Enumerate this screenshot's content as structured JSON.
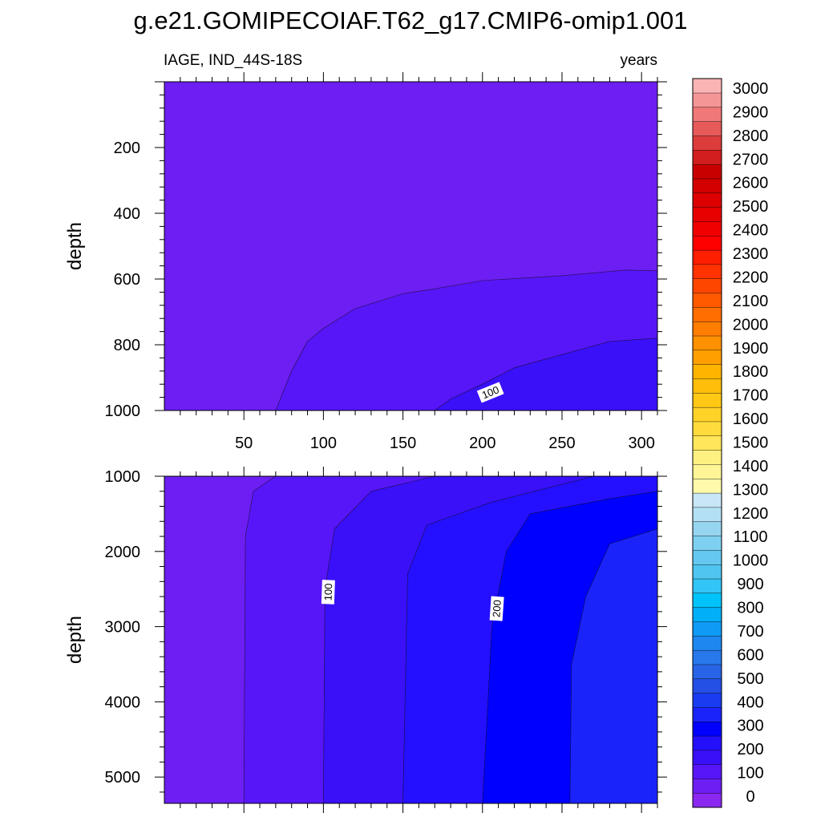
{
  "chart_data": {
    "type": "heatmap",
    "title": "g.e21.GOMIPECOIAF.T62_g17.CMIP6-omip1.001",
    "left_subtitle": "IAGE, IND_44S-18S",
    "right_subtitle": "years",
    "xlim": [
      0,
      310
    ],
    "x_ticks": [
      50,
      100,
      150,
      200,
      250,
      300
    ],
    "panels": [
      {
        "name": "upper",
        "ylabel": "depth",
        "ylim": [
          0,
          1000
        ],
        "y_ticks": [
          200,
          400,
          600,
          800,
          1000
        ],
        "regions": [
          {
            "fill": "#6d1ef2",
            "boundary": [
              [
                0,
                0
              ],
              [
                310,
                0
              ],
              [
                310,
                575
              ],
              [
                290,
                573
              ],
              [
                250,
                590
              ],
              [
                200,
                605
              ],
              [
                170,
                630
              ],
              [
                150,
                645
              ],
              [
                120,
                690
              ],
              [
                100,
                750
              ],
              [
                90,
                790
              ],
              [
                80,
                880
              ],
              [
                70,
                1000
              ],
              [
                0,
                1000
              ]
            ]
          },
          {
            "fill": "#5716f7",
            "boundary": [
              [
                70,
                1000
              ],
              [
                80,
                880
              ],
              [
                90,
                790
              ],
              [
                100,
                750
              ],
              [
                120,
                690
              ],
              [
                150,
                645
              ],
              [
                170,
                630
              ],
              [
                200,
                605
              ],
              [
                250,
                590
              ],
              [
                290,
                573
              ],
              [
                310,
                575
              ],
              [
                310,
                780
              ],
              [
                280,
                790
              ],
              [
                250,
                830
              ],
              [
                220,
                870
              ],
              [
                200,
                920
              ],
              [
                180,
                965
              ],
              [
                170,
                1000
              ]
            ]
          },
          {
            "fill": "#3a10f9",
            "boundary": [
              [
                170,
                1000
              ],
              [
                180,
                965
              ],
              [
                200,
                920
              ],
              [
                220,
                870
              ],
              [
                250,
                830
              ],
              [
                280,
                790
              ],
              [
                310,
                780
              ],
              [
                310,
                1000
              ]
            ]
          }
        ],
        "contour_labels": [
          {
            "text": "100",
            "x": 205,
            "y": 945,
            "angle": -22
          }
        ]
      },
      {
        "name": "lower",
        "ylabel": "depth",
        "ylim": [
          1000,
          5350
        ],
        "y_ticks": [
          1000,
          2000,
          3000,
          4000,
          5000
        ],
        "regions": [
          {
            "fill": "#6d1ef2",
            "boundary": [
              [
                0,
                1000
              ],
              [
                70,
                1000
              ],
              [
                56,
                1200
              ],
              [
                51,
                1800
              ],
              [
                50,
                5350
              ],
              [
                0,
                5350
              ]
            ]
          },
          {
            "fill": "#5716f7",
            "boundary": [
              [
                70,
                1000
              ],
              [
                170,
                1000
              ],
              [
                130,
                1200
              ],
              [
                107,
                1700
              ],
              [
                101,
                2500
              ],
              [
                100,
                5350
              ],
              [
                50,
                5350
              ],
              [
                51,
                1800
              ],
              [
                56,
                1200
              ]
            ]
          },
          {
            "fill": "#3a10f9",
            "boundary": [
              [
                170,
                1000
              ],
              [
                270,
                1000
              ],
              [
                205,
                1350
              ],
              [
                165,
                1650
              ],
              [
                153,
                2300
              ],
              [
                150,
                5350
              ],
              [
                100,
                5350
              ],
              [
                101,
                2500
              ],
              [
                107,
                1700
              ],
              [
                130,
                1200
              ]
            ]
          },
          {
            "fill": "#2410ff",
            "boundary": [
              [
                270,
                1000
              ],
              [
                310,
                1000
              ],
              [
                310,
                1200
              ],
              [
                280,
                1300
              ],
              [
                230,
                1500
              ],
              [
                215,
                2000
              ],
              [
                206,
                3000
              ],
              [
                200,
                5350
              ],
              [
                150,
                5350
              ],
              [
                153,
                2300
              ],
              [
                165,
                1650
              ],
              [
                205,
                1350
              ]
            ]
          },
          {
            "fill": "#0000ff",
            "boundary": [
              [
                310,
                1200
              ],
              [
                310,
                1700
              ],
              [
                280,
                1900
              ],
              [
                265,
                2600
              ],
              [
                256,
                3500
              ],
              [
                255,
                5350
              ],
              [
                200,
                5350
              ],
              [
                206,
                3000
              ],
              [
                215,
                2000
              ],
              [
                230,
                1500
              ],
              [
                280,
                1300
              ]
            ]
          },
          {
            "fill": "#1a24fa",
            "boundary": [
              [
                310,
                1700
              ],
              [
                310,
                5350
              ],
              [
                255,
                5350
              ],
              [
                256,
                3500
              ],
              [
                265,
                2600
              ],
              [
                280,
                1900
              ]
            ]
          }
        ],
        "contour_labels": [
          {
            "text": "100",
            "x": 103,
            "y": 2540,
            "angle": -88
          },
          {
            "text": "200",
            "x": 209,
            "y": 2760,
            "angle": -86
          }
        ]
      }
    ],
    "colorbar": {
      "labels": [
        "0",
        "100",
        "200",
        "300",
        "400",
        "500",
        "600",
        "700",
        "800",
        "900",
        "1000",
        "1100",
        "1200",
        "1300",
        "1400",
        "1500",
        "1600",
        "1700",
        "1800",
        "1900",
        "2000",
        "2100",
        "2200",
        "2300",
        "2400",
        "2500",
        "2600",
        "2700",
        "2800",
        "2900",
        "3000"
      ],
      "colors": [
        "#8a28f0",
        "#6d1ef2",
        "#5716f7",
        "#3a10f9",
        "#2410ff",
        "#0000ff",
        "#1a24fa",
        "#1a3cf0",
        "#2450e6",
        "#2864e6",
        "#2878ec",
        "#1e88f0",
        "#0f9bf5",
        "#00aff8",
        "#00c3fa",
        "#32c5f5",
        "#50c5f0",
        "#64c8f0",
        "#7ed0f0",
        "#96d5f0",
        "#b4e0f5",
        "#c8e6f5",
        "#fffaaa",
        "#fff596",
        "#fff082",
        "#ffe65a",
        "#ffdc3c",
        "#ffd228",
        "#ffc814",
        "#ffbe0a",
        "#ffb400",
        "#ffa000",
        "#ff9100",
        "#ff7d00",
        "#ff6e00",
        "#ff5a00",
        "#ff4600",
        "#ff3200",
        "#ff1e00",
        "#ff0000",
        "#f00000",
        "#e60000",
        "#dc0000",
        "#d20000",
        "#c80000",
        "#d21e1e",
        "#dc3c3c",
        "#e65a5a",
        "#f07878",
        "#f59696",
        "#fab4b4"
      ]
    }
  }
}
